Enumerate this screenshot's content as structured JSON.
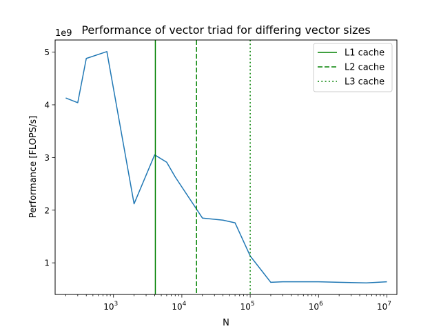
{
  "chart_data": {
    "type": "line",
    "title": "Performance of vector triad for differing vector sizes",
    "xlabel": "N",
    "ylabel": "Performance [FLOPS/s]",
    "y_offset_label": "1e9",
    "x_scale": "log",
    "xlim": [
      140,
      14000000
    ],
    "ylim": [
      0.4,
      5.23
    ],
    "x_ticks": [
      {
        "value": 1000,
        "base": "10",
        "exp": "3"
      },
      {
        "value": 10000,
        "base": "10",
        "exp": "4"
      },
      {
        "value": 100000,
        "base": "10",
        "exp": "5"
      },
      {
        "value": 1000000,
        "base": "10",
        "exp": "6"
      },
      {
        "value": 10000000,
        "base": "10",
        "exp": "7"
      }
    ],
    "y_ticks": [
      1,
      2,
      3,
      4,
      5
    ],
    "grid": false,
    "legend_position": "top-right",
    "series": [
      {
        "color": "#1f77b4",
        "x": [
          200,
          300,
          400,
          800,
          2000,
          4000,
          6000,
          8000,
          20000,
          40000,
          60000,
          100000,
          200000,
          300000,
          500000,
          1000000,
          2000000,
          5000000,
          10000000
        ],
        "y": [
          4.13,
          4.04,
          4.88,
          5.01,
          2.12,
          3.05,
          2.91,
          2.63,
          1.85,
          1.81,
          1.76,
          1.13,
          0.63,
          0.64,
          0.64,
          0.64,
          0.63,
          0.62,
          0.64
        ]
      }
    ],
    "vlines": [
      {
        "name": "L1 cache",
        "x": 4096,
        "style": "solid",
        "color": "#008000"
      },
      {
        "name": "L2 cache",
        "x": 16384,
        "style": "dashed",
        "color": "#008000"
      },
      {
        "name": "L3 cache",
        "x": 100000,
        "style": "dotted",
        "color": "#008000"
      }
    ]
  }
}
